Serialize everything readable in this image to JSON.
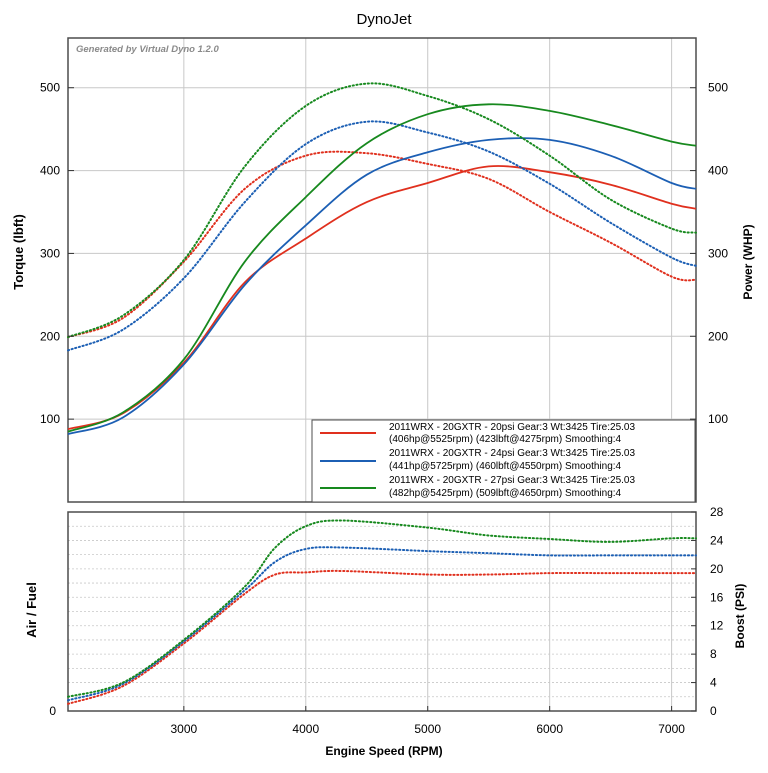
{
  "title": "DynoJet",
  "watermark": "Generated by Virtual Dyno 1.2.0",
  "colors": {
    "red": "#e0301e",
    "blue": "#1c5fb4",
    "green": "#17891e",
    "grid": "#c8c8c8",
    "frame": "#4d4d4d"
  },
  "chart_data": [
    {
      "type": "line",
      "title": "DynoJet",
      "xlabel": "Engine Speed (RPM)",
      "ylabel_left": "Torque (lbft)",
      "ylabel_right": "Power (WHP)",
      "xlim": [
        2050,
        7200
      ],
      "ylim": [
        0,
        560
      ],
      "x_ticks": [
        "3000",
        "4000",
        "5000",
        "6000",
        "7000"
      ],
      "y_ticks_left": [
        "100",
        "200",
        "300",
        "400",
        "500"
      ],
      "y_ticks_right": [
        "100",
        "200",
        "300",
        "400",
        "500"
      ],
      "grid": true,
      "legend_position": "bottom-right",
      "legend": [
        {
          "line1": "2011WRX - 20GXTR - 20psi Gear:3 Wt:3425 Tire:25.03",
          "line2": "(406hp@5525rpm) (423lbft@4275rpm) Smoothing:4",
          "color": "#e0301e"
        },
        {
          "line1": "2011WRX - 20GXTR - 24psi Gear:3 Wt:3425 Tire:25.03",
          "line2": "(441hp@5725rpm) (460lbft@4550rpm) Smoothing:4",
          "color": "#1c5fb4"
        },
        {
          "line1": "2011WRX - 20GXTR - 27psi Gear:3 Wt:3425 Tire:25.03",
          "line2": "(482hp@5425rpm) (509lbft@4650rpm) Smoothing:4",
          "color": "#17891e"
        }
      ],
      "x": [
        2050,
        2500,
        3000,
        3500,
        4000,
        4500,
        5000,
        5500,
        6000,
        6500,
        7000,
        7200
      ],
      "series": [
        {
          "name": "20psi power",
          "style": "solid",
          "color": "#e0301e",
          "values": [
            88,
            107,
            168,
            265,
            318,
            362,
            385,
            405,
            398,
            383,
            360,
            354
          ]
        },
        {
          "name": "20psi torque",
          "style": "dotted",
          "color": "#e0301e",
          "values": [
            199,
            222,
            290,
            378,
            418,
            421,
            408,
            390,
            350,
            313,
            272,
            268
          ]
        },
        {
          "name": "24psi power",
          "style": "solid",
          "color": "#1c5fb4",
          "values": [
            82,
            102,
            166,
            262,
            334,
            395,
            422,
            437,
            437,
            418,
            385,
            378
          ]
        },
        {
          "name": "24psi torque",
          "style": "dotted",
          "color": "#1c5fb4",
          "values": [
            183,
            208,
            270,
            362,
            432,
            459,
            446,
            423,
            384,
            337,
            295,
            285
          ]
        },
        {
          "name": "27psi power",
          "style": "solid",
          "color": "#17891e",
          "values": [
            85,
            108,
            172,
            290,
            368,
            433,
            468,
            480,
            472,
            455,
            435,
            430
          ]
        },
        {
          "name": "27psi torque",
          "style": "dotted",
          "color": "#17891e",
          "values": [
            199,
            225,
            292,
            405,
            478,
            505,
            490,
            462,
            418,
            365,
            330,
            325
          ]
        }
      ]
    },
    {
      "type": "line",
      "xlabel": "Engine Speed (RPM)",
      "ylabel_left": "Air / Fuel",
      "ylabel_right": "Boost (PSI)",
      "xlim": [
        2050,
        7200
      ],
      "ylim": [
        0,
        28
      ],
      "y_ticks_left": [
        "0"
      ],
      "y_ticks_right": [
        "0",
        "4",
        "8",
        "12",
        "16",
        "20",
        "24",
        "28"
      ],
      "grid": true,
      "x": [
        2050,
        2500,
        3000,
        3500,
        3750,
        4000,
        4300,
        5000,
        5500,
        6000,
        6500,
        7000,
        7200
      ],
      "series": [
        {
          "name": "20psi boost",
          "style": "dotted",
          "color": "#e0301e",
          "values": [
            1,
            3.5,
            9.5,
            16.5,
            19.2,
            19.5,
            19.7,
            19.2,
            19.2,
            19.4,
            19.4,
            19.4,
            19.4
          ]
        },
        {
          "name": "24psi boost",
          "style": "dotted",
          "color": "#1c5fb4",
          "values": [
            1.5,
            3.8,
            9.8,
            17,
            21,
            22.8,
            23,
            22.5,
            22.2,
            21.9,
            21.9,
            21.9,
            21.9
          ]
        },
        {
          "name": "27psi boost",
          "style": "dotted",
          "color": "#17891e",
          "values": [
            2,
            4,
            10,
            17.5,
            23,
            26,
            26.8,
            25.8,
            24.7,
            24.2,
            23.8,
            24.3,
            24.3
          ]
        }
      ]
    }
  ]
}
